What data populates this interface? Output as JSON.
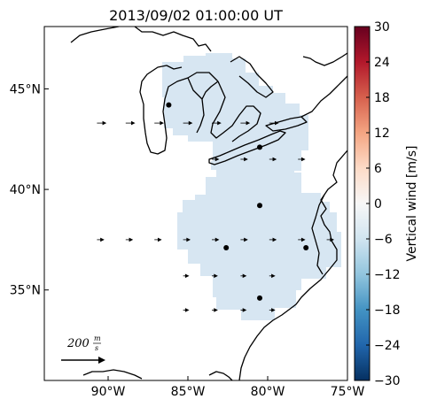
{
  "title": "2013/09/02 01:00:00 UT",
  "map": {
    "lon_ticks": [
      "90°W",
      "85°W",
      "80°W",
      "75°W"
    ],
    "lat_ticks": [
      "45°N",
      "40°N",
      "35°N"
    ],
    "lon_range": [
      -94,
      -75
    ],
    "lat_range": [
      30.5,
      48.1
    ],
    "field_color": "#d7e6f2",
    "radar_sites": [
      {
        "lon": -86.2,
        "lat": 44.2
      },
      {
        "lon": -80.5,
        "lat": 42.1
      },
      {
        "lon": -80.5,
        "lat": 39.2
      },
      {
        "lon": -82.6,
        "lat": 37.1
      },
      {
        "lon": -77.6,
        "lat": 37.1
      },
      {
        "lon": -80.5,
        "lat": 34.6
      }
    ],
    "wind_vectors": [
      {
        "lon": -90.7,
        "lat": 43.3,
        "u": 20,
        "v": 0
      },
      {
        "lon": -88.9,
        "lat": 43.3,
        "u": 20,
        "v": 0
      },
      {
        "lon": -87.1,
        "lat": 43.3,
        "u": 20,
        "v": 0
      },
      {
        "lon": -85.3,
        "lat": 43.3,
        "u": 20,
        "v": 0
      },
      {
        "lon": -83.5,
        "lat": 43.3,
        "u": 20,
        "v": 0
      },
      {
        "lon": -81.7,
        "lat": 43.3,
        "u": 20,
        "v": 0
      },
      {
        "lon": -79.9,
        "lat": 43.3,
        "u": 20,
        "v": 0
      },
      {
        "lon": -83.5,
        "lat": 41.5,
        "u": 15,
        "v": 0
      },
      {
        "lon": -81.7,
        "lat": 41.5,
        "u": 15,
        "v": 0
      },
      {
        "lon": -79.9,
        "lat": 41.5,
        "u": 15,
        "v": 0
      },
      {
        "lon": -78.1,
        "lat": 41.5,
        "u": 15,
        "v": 0
      },
      {
        "lon": -90.7,
        "lat": 37.5,
        "u": 15,
        "v": 0
      },
      {
        "lon": -88.9,
        "lat": 37.5,
        "u": 15,
        "v": 0
      },
      {
        "lon": -87.1,
        "lat": 37.5,
        "u": 15,
        "v": 0
      },
      {
        "lon": -85.3,
        "lat": 37.5,
        "u": 15,
        "v": 0
      },
      {
        "lon": -83.5,
        "lat": 37.5,
        "u": 15,
        "v": 0
      },
      {
        "lon": -81.7,
        "lat": 37.5,
        "u": 15,
        "v": 0
      },
      {
        "lon": -79.9,
        "lat": 37.5,
        "u": 15,
        "v": 0
      },
      {
        "lon": -78.1,
        "lat": 37.5,
        "u": 15,
        "v": 0
      },
      {
        "lon": -76.3,
        "lat": 37.5,
        "u": 15,
        "v": 0
      },
      {
        "lon": -85.3,
        "lat": 35.7,
        "u": 12,
        "v": 0
      },
      {
        "lon": -83.5,
        "lat": 35.7,
        "u": 12,
        "v": 0
      },
      {
        "lon": -81.7,
        "lat": 35.7,
        "u": 12,
        "v": 0
      },
      {
        "lon": -79.9,
        "lat": 35.7,
        "u": 12,
        "v": 0
      },
      {
        "lon": -85.3,
        "lat": 34.0,
        "u": 12,
        "v": 0
      },
      {
        "lon": -83.5,
        "lat": 34.0,
        "u": 12,
        "v": 0
      },
      {
        "lon": -81.7,
        "lat": 34.0,
        "u": 12,
        "v": 0
      },
      {
        "lon": -79.9,
        "lat": 34.0,
        "u": 12,
        "v": 0
      }
    ],
    "reference_vector": {
      "value": 200,
      "label_value": "200",
      "unit_num": "m",
      "unit_den": "s"
    }
  },
  "colorbar": {
    "label": "Vertical wind [m/s]",
    "min": -30,
    "max": 30,
    "ticks": [
      "30",
      "24",
      "18",
      "12",
      "6",
      "0",
      "−6",
      "−12",
      "−18",
      "−24",
      "−30"
    ],
    "colormap": "RdBu_r",
    "colors": [
      "#053061",
      "#2166ac",
      "#4393c3",
      "#92c5de",
      "#d1e5f0",
      "#f7f7f7",
      "#fddbc7",
      "#f4a582",
      "#d6604d",
      "#b2182b",
      "#67001f"
    ]
  }
}
